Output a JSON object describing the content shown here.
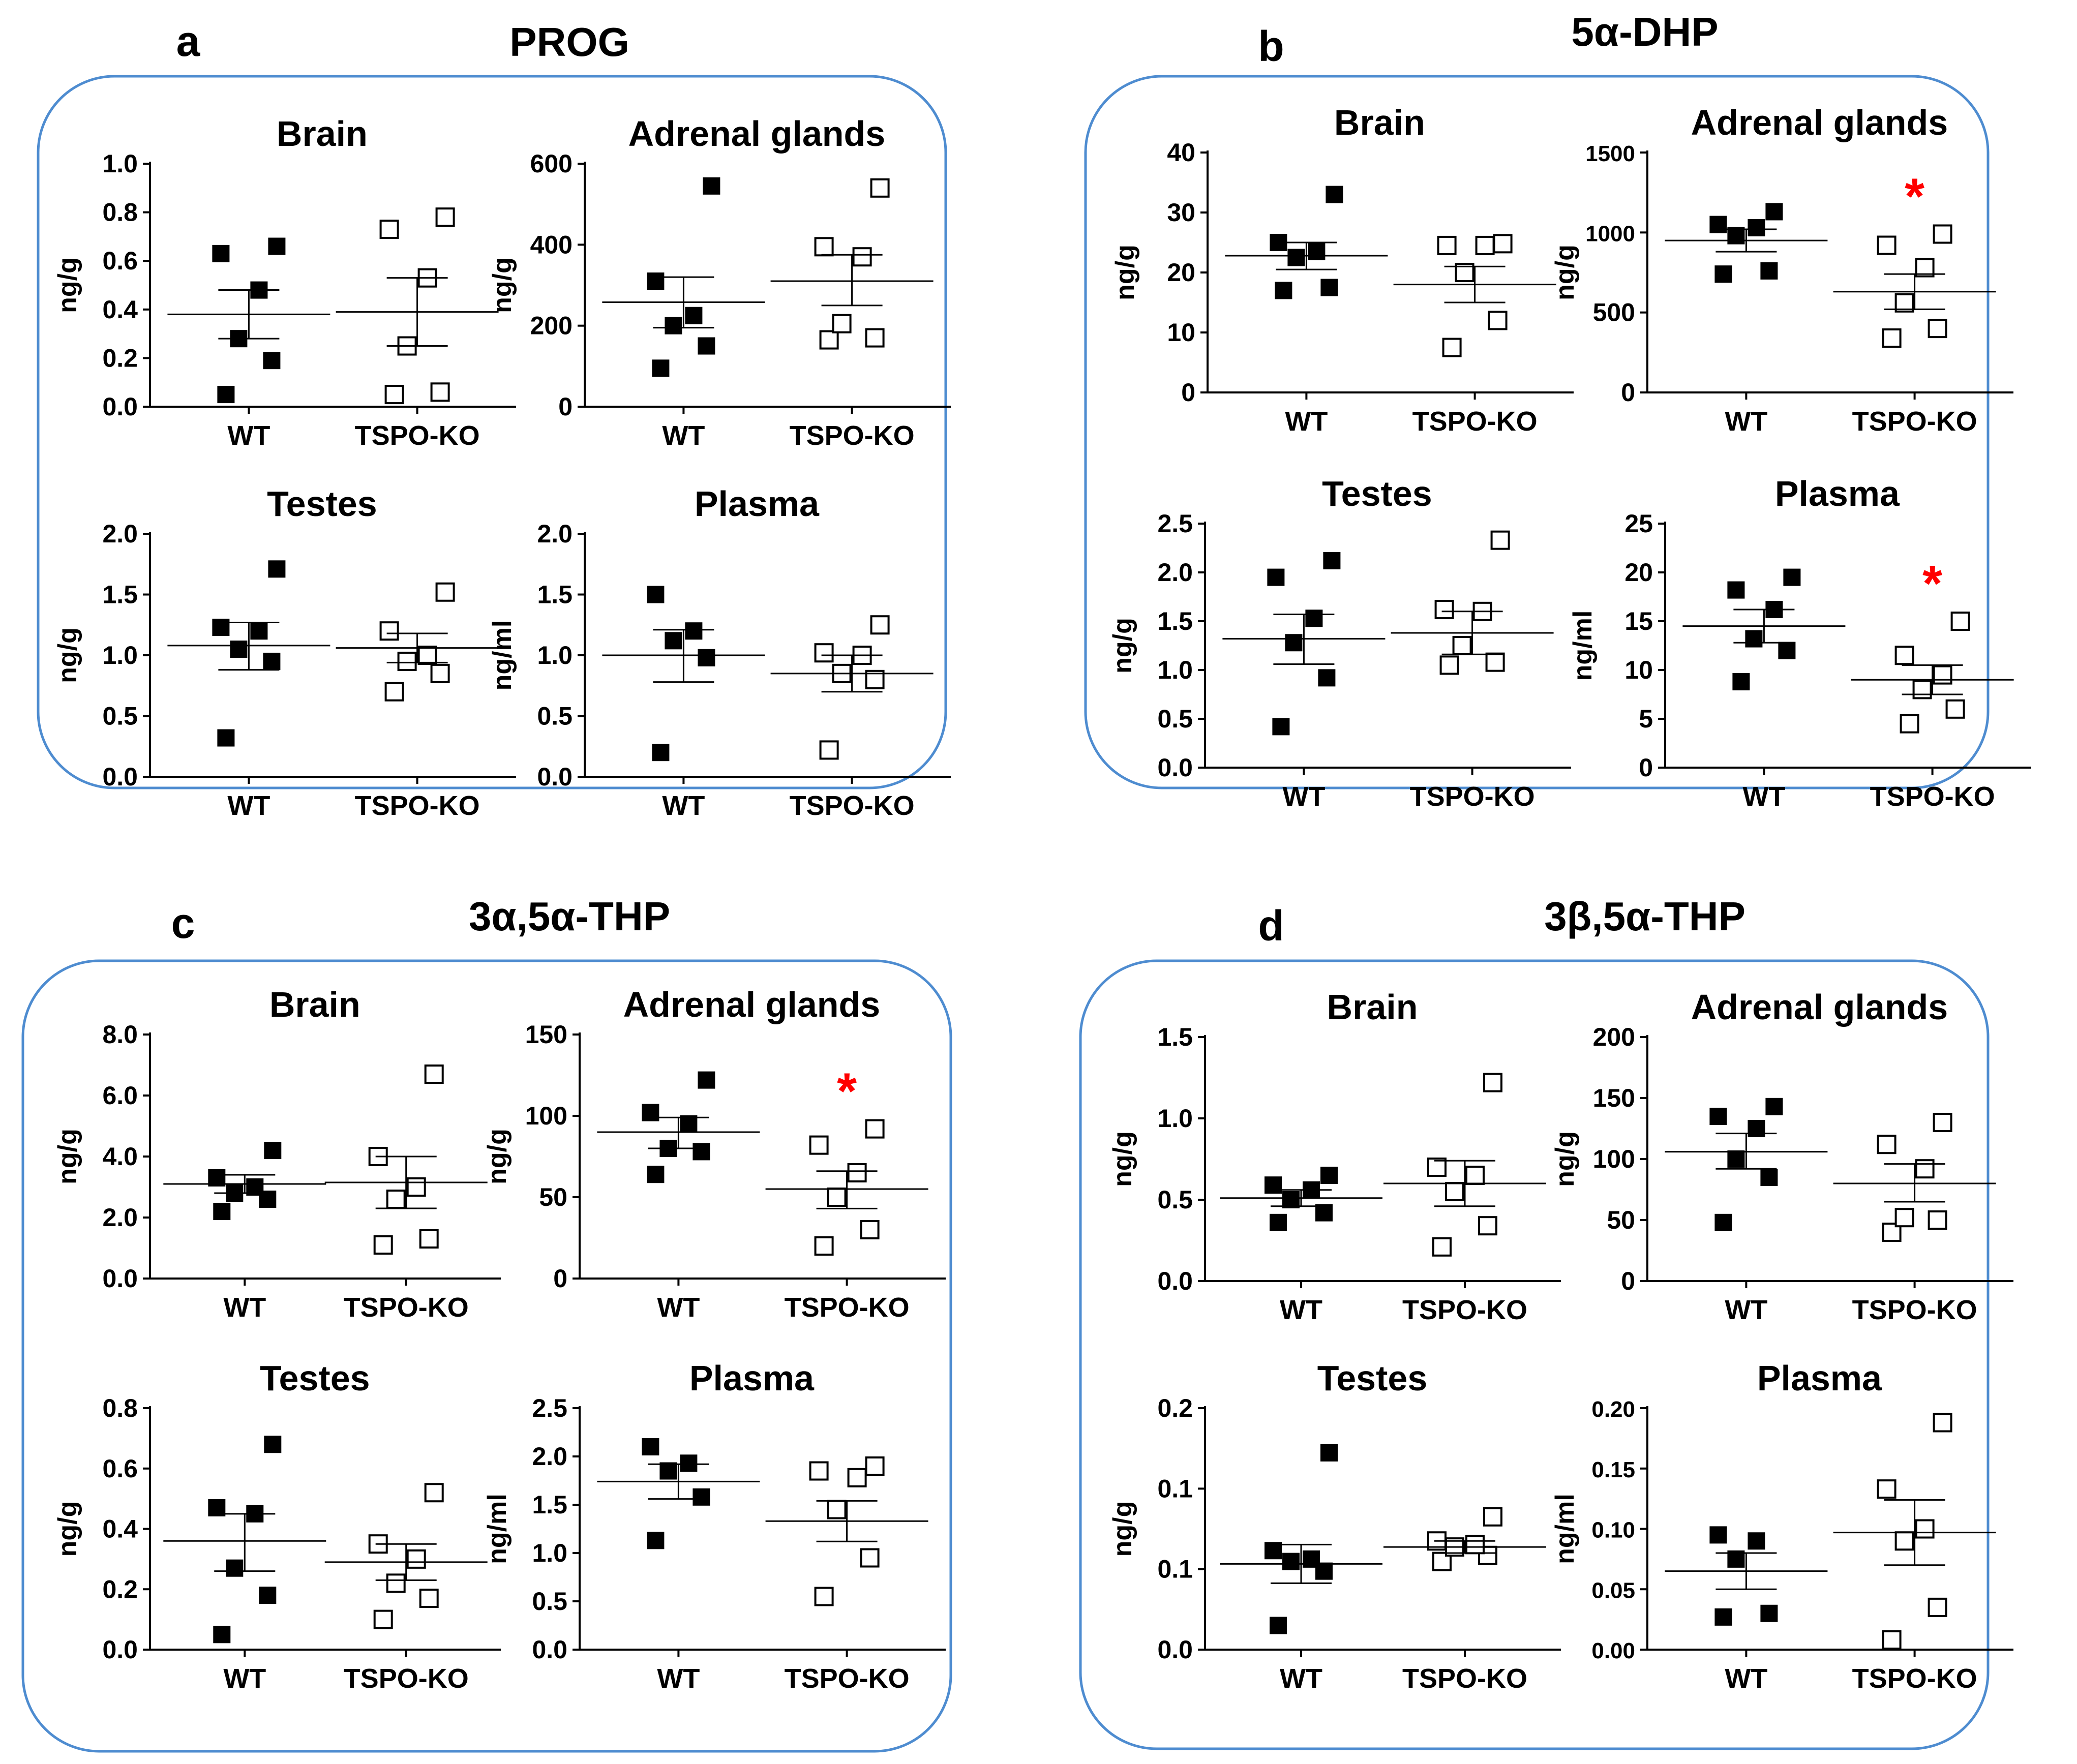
{
  "colors": {
    "panel_border": "#4e8cd0",
    "axis": "#000000",
    "star": "#ff0000",
    "wt_fill": "#000000",
    "ko_stroke": "#000000"
  },
  "star_symbol": "*",
  "chart_data": [
    {
      "panel": "a",
      "title": "PROG",
      "charts": [
        {
          "type": "scatter",
          "title": "Brain",
          "ylabel": "ng/g",
          "ylim": [
            0,
            1.0
          ],
          "yticks": [
            "0.0",
            "0.2",
            "0.4",
            "0.6",
            "0.8",
            "1.0"
          ],
          "categories": [
            "WT",
            "TSPO-KO"
          ],
          "series": [
            {
              "name": "WT",
              "values": [
                0.05,
                0.19,
                0.28,
                0.48,
                0.63,
                0.66
              ],
              "mean": 0.38,
              "sem": [
                0.28,
                0.48
              ]
            },
            {
              "name": "TSPO-KO",
              "values": [
                0.05,
                0.06,
                0.25,
                0.53,
                0.73,
                0.78
              ],
              "mean": 0.39,
              "sem": [
                0.25,
                0.53
              ]
            }
          ],
          "significant": false
        },
        {
          "type": "scatter",
          "title": "Adrenal glands",
          "ylabel": "ng/g",
          "ylim": [
            0,
            600
          ],
          "yticks": [
            "0",
            "200",
            "400",
            "600"
          ],
          "categories": [
            "WT",
            "TSPO-KO"
          ],
          "series": [
            {
              "name": "WT",
              "values": [
                95,
                150,
                200,
                225,
                310,
                545
              ],
              "mean": 258,
              "sem": [
                195,
                320
              ]
            },
            {
              "name": "TSPO-KO",
              "values": [
                165,
                170,
                205,
                370,
                395,
                540
              ],
              "mean": 310,
              "sem": [
                250,
                375
              ]
            }
          ],
          "significant": false
        },
        {
          "type": "scatter",
          "title": "Testes",
          "ylabel": "ng/g",
          "ylim": [
            0,
            2.0
          ],
          "yticks": [
            "0.0",
            "0.5",
            "1.0",
            "1.5",
            "2.0"
          ],
          "categories": [
            "WT",
            "TSPO-KO"
          ],
          "series": [
            {
              "name": "WT",
              "values": [
                0.32,
                0.95,
                1.05,
                1.2,
                1.23,
                1.71
              ],
              "mean": 1.08,
              "sem": [
                0.88,
                1.27
              ]
            },
            {
              "name": "TSPO-KO",
              "values": [
                0.7,
                0.85,
                0.95,
                1.0,
                1.2,
                1.52
              ],
              "mean": 1.06,
              "sem": [
                0.94,
                1.18
              ]
            }
          ],
          "significant": false
        },
        {
          "type": "scatter",
          "title": "Plasma",
          "ylabel": "ng/ml",
          "ylim": [
            0,
            2.0
          ],
          "yticks": [
            "0.0",
            "0.5",
            "1.0",
            "1.5",
            "2.0"
          ],
          "categories": [
            "WT",
            "TSPO-KO"
          ],
          "series": [
            {
              "name": "WT",
              "values": [
                0.2,
                0.98,
                1.12,
                1.2,
                1.5
              ],
              "mean": 1.0,
              "sem": [
                0.78,
                1.21
              ]
            },
            {
              "name": "TSPO-KO",
              "values": [
                0.22,
                0.8,
                0.85,
                1.0,
                1.02,
                1.25
              ],
              "mean": 0.85,
              "sem": [
                0.7,
                1.0
              ]
            }
          ],
          "significant": false
        }
      ]
    },
    {
      "panel": "b",
      "title": "5α-DHP",
      "charts": [
        {
          "type": "scatter",
          "title": "Brain",
          "ylabel": "ng/g",
          "ylim": [
            0,
            40
          ],
          "yticks": [
            "0",
            "10",
            "20",
            "30",
            "40"
          ],
          "categories": [
            "WT",
            "TSPO-KO"
          ],
          "series": [
            {
              "name": "WT",
              "values": [
                17,
                17.5,
                22.5,
                23.5,
                25,
                33
              ],
              "mean": 22.8,
              "sem": [
                20.5,
                25.0
              ]
            },
            {
              "name": "TSPO-KO",
              "values": [
                7.5,
                12,
                20,
                24.5,
                24.5,
                24.8
              ],
              "mean": 18.0,
              "sem": [
                15.0,
                21.0
              ]
            }
          ],
          "significant": false
        },
        {
          "type": "scatter",
          "title": "Adrenal glands",
          "ylabel": "ng/g",
          "ylim": [
            0,
            1500
          ],
          "yticks": [
            "0",
            "500",
            "1000",
            "1500"
          ],
          "categories": [
            "WT",
            "TSPO-KO"
          ],
          "series": [
            {
              "name": "WT",
              "values": [
                740,
                760,
                980,
                1030,
                1050,
                1130
              ],
              "mean": 950,
              "sem": [
                880,
                1020
              ]
            },
            {
              "name": "TSPO-KO",
              "values": [
                340,
                400,
                560,
                780,
                920,
                990
              ],
              "mean": 630,
              "sem": [
                520,
                740
              ]
            }
          ],
          "significant": true
        },
        {
          "type": "scatter",
          "title": "Testes",
          "ylabel": "ng/g",
          "ylim": [
            0,
            2.5
          ],
          "yticks": [
            "0.0",
            "0.5",
            "1.0",
            "1.5",
            "2.0",
            "2.5"
          ],
          "categories": [
            "WT",
            "TSPO-KO"
          ],
          "series": [
            {
              "name": "WT",
              "values": [
                0.42,
                0.92,
                1.28,
                1.53,
                1.95,
                2.12
              ],
              "mean": 1.32,
              "sem": [
                1.06,
                1.57
              ]
            },
            {
              "name": "TSPO-KO",
              "values": [
                1.05,
                1.08,
                1.25,
                1.6,
                1.62,
                2.33
              ],
              "mean": 1.38,
              "sem": [
                1.16,
                1.6
              ]
            }
          ],
          "significant": false
        },
        {
          "type": "scatter",
          "title": "Plasma",
          "ylabel": "ng/ml",
          "ylim": [
            0,
            25
          ],
          "yticks": [
            "0",
            "5",
            "10",
            "15",
            "20",
            "25"
          ],
          "categories": [
            "WT",
            "TSPO-KO"
          ],
          "series": [
            {
              "name": "WT",
              "values": [
                8.8,
                12,
                13.2,
                16.2,
                18.2,
                19.5
              ],
              "mean": 14.5,
              "sem": [
                12.8,
                16.2
              ]
            },
            {
              "name": "TSPO-KO",
              "values": [
                4.5,
                6,
                8,
                9.5,
                11.5,
                15
              ],
              "mean": 9.0,
              "sem": [
                7.5,
                10.5
              ]
            }
          ],
          "significant": true
        }
      ]
    },
    {
      "panel": "c",
      "title": "3α,5α-THP",
      "charts": [
        {
          "type": "scatter",
          "title": "Brain",
          "ylabel": "ng/g",
          "ylim": [
            0,
            8.0
          ],
          "yticks": [
            "0.0",
            "2.0",
            "4.0",
            "6.0",
            "8.0"
          ],
          "categories": [
            "WT",
            "TSPO-KO"
          ],
          "series": [
            {
              "name": "WT",
              "values": [
                2.2,
                2.6,
                2.8,
                3.0,
                3.3,
                4.2
              ],
              "mean": 3.1,
              "sem": [
                2.8,
                3.4
              ]
            },
            {
              "name": "TSPO-KO",
              "values": [
                1.1,
                1.3,
                2.6,
                3.0,
                4.0,
                6.7
              ],
              "mean": 3.15,
              "sem": [
                2.3,
                4.0
              ]
            }
          ],
          "significant": false
        },
        {
          "type": "scatter",
          "title": "Adrenal glands",
          "ylabel": "ng/g",
          "ylim": [
            0,
            150
          ],
          "yticks": [
            "0",
            "50",
            "100",
            "150"
          ],
          "categories": [
            "WT",
            "TSPO-KO"
          ],
          "series": [
            {
              "name": "WT",
              "values": [
                64,
                78,
                80,
                95,
                102,
                122
              ],
              "mean": 90,
              "sem": [
                80,
                99
              ]
            },
            {
              "name": "TSPO-KO",
              "values": [
                20,
                30,
                50,
                65,
                82,
                92
              ],
              "mean": 55,
              "sem": [
                43,
                66
              ]
            }
          ],
          "significant": true
        },
        {
          "type": "scatter",
          "title": "Testes",
          "ylabel": "ng/g",
          "ylim": [
            0,
            0.8
          ],
          "yticks": [
            "0.0",
            "0.2",
            "0.4",
            "0.6",
            "0.8"
          ],
          "categories": [
            "WT",
            "TSPO-KO"
          ],
          "series": [
            {
              "name": "WT",
              "values": [
                0.05,
                0.18,
                0.27,
                0.45,
                0.47,
                0.68
              ],
              "mean": 0.36,
              "sem": [
                0.26,
                0.45
              ]
            },
            {
              "name": "TSPO-KO",
              "values": [
                0.1,
                0.17,
                0.22,
                0.3,
                0.35,
                0.52
              ],
              "mean": 0.29,
              "sem": [
                0.23,
                0.35
              ]
            }
          ],
          "significant": false
        },
        {
          "type": "scatter",
          "title": "Plasma",
          "ylabel": "ng/ml",
          "ylim": [
            0,
            2.5
          ],
          "yticks": [
            "0.0",
            "0.5",
            "1.0",
            "1.5",
            "2.0",
            "2.5"
          ],
          "categories": [
            "WT",
            "TSPO-KO"
          ],
          "series": [
            {
              "name": "WT",
              "values": [
                1.13,
                1.58,
                1.85,
                1.93,
                2.1
              ],
              "mean": 1.74,
              "sem": [
                1.56,
                1.92
              ]
            },
            {
              "name": "TSPO-KO",
              "values": [
                0.55,
                0.95,
                1.45,
                1.78,
                1.85,
                1.9
              ],
              "mean": 1.33,
              "sem": [
                1.12,
                1.54
              ]
            }
          ],
          "significant": false
        }
      ]
    },
    {
      "panel": "d",
      "title": "3β,5α-THP",
      "charts": [
        {
          "type": "scatter",
          "title": "Brain",
          "ylabel": "ng/g",
          "ylim": [
            0,
            1.5
          ],
          "yticks": [
            "0.0",
            "0.5",
            "1.0",
            "1.5"
          ],
          "categories": [
            "WT",
            "TSPO-KO"
          ],
          "series": [
            {
              "name": "WT",
              "values": [
                0.36,
                0.42,
                0.5,
                0.56,
                0.59,
                0.65
              ],
              "mean": 0.51,
              "sem": [
                0.46,
                0.56
              ]
            },
            {
              "name": "TSPO-KO",
              "values": [
                0.21,
                0.34,
                0.55,
                0.65,
                0.7,
                1.22
              ],
              "mean": 0.6,
              "sem": [
                0.46,
                0.74
              ]
            }
          ],
          "significant": false
        },
        {
          "type": "scatter",
          "title": "Adrenal glands",
          "ylabel": "ng/g",
          "ylim": [
            0,
            200
          ],
          "yticks": [
            "0",
            "50",
            "100",
            "150",
            "200"
          ],
          "categories": [
            "WT",
            "TSPO-KO"
          ],
          "series": [
            {
              "name": "WT",
              "values": [
                48,
                85,
                100,
                125,
                135,
                143
              ],
              "mean": 106,
              "sem": [
                92,
                121
              ]
            },
            {
              "name": "TSPO-KO",
              "values": [
                40,
                50,
                52,
                92,
                112,
                130
              ],
              "mean": 80,
              "sem": [
                65,
                96
              ]
            }
          ],
          "significant": false
        },
        {
          "type": "scatter",
          "title": "Testes",
          "ylabel": "ng/g",
          "ylim": [
            0,
            0.2
          ],
          "yticks": [
            "0.0",
            "0.1",
            "0.1",
            "0.2"
          ],
          "categories": [
            "WT",
            "TSPO-KO"
          ],
          "series": [
            {
              "name": "WT",
              "values": [
                0.02,
                0.065,
                0.073,
                0.075,
                0.082,
                0.163
              ],
              "mean": 0.071,
              "sem": [
                0.055,
                0.087
              ]
            },
            {
              "name": "TSPO-KO",
              "values": [
                0.073,
                0.078,
                0.085,
                0.087,
                0.09,
                0.11
              ],
              "mean": 0.085,
              "sem": [
                0.08,
                0.09
              ]
            }
          ],
          "significant": false
        },
        {
          "type": "scatter",
          "title": "Plasma",
          "ylabel": "ng/ml",
          "ylim": [
            0,
            0.2
          ],
          "yticks": [
            "0.00",
            "0.05",
            "0.10",
            "0.15",
            "0.20"
          ],
          "categories": [
            "WT",
            "TSPO-KO"
          ],
          "series": [
            {
              "name": "WT",
              "values": [
                0.027,
                0.03,
                0.075,
                0.09,
                0.095
              ],
              "mean": 0.065,
              "sem": [
                0.05,
                0.08
              ]
            },
            {
              "name": "TSPO-KO",
              "values": [
                0.008,
                0.035,
                0.09,
                0.1,
                0.133,
                0.188
              ],
              "mean": 0.097,
              "sem": [
                0.07,
                0.124
              ]
            }
          ],
          "significant": false
        }
      ]
    }
  ]
}
